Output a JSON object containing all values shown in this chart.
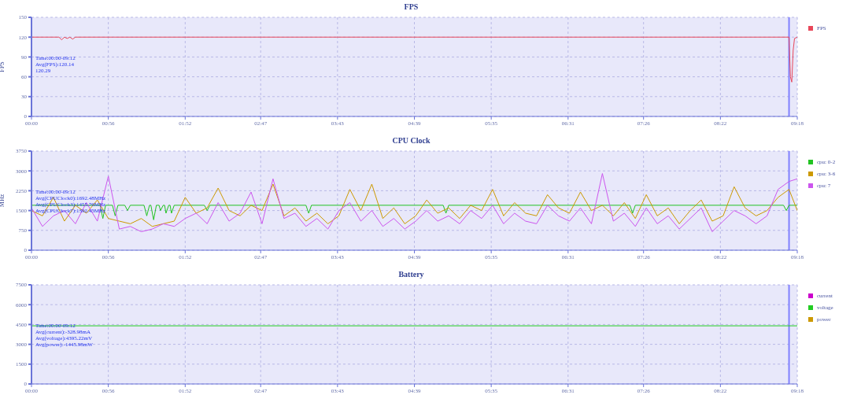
{
  "chart_data": [
    {
      "type": "line",
      "title": "FPS",
      "ylabel": "FPS",
      "xlim": [
        0,
        558
      ],
      "ylim": [
        0,
        150
      ],
      "yticks": [
        0,
        30,
        60,
        90,
        120,
        150
      ],
      "xticks": [
        {
          "value": 0,
          "label": "00:00"
        },
        {
          "value": 56,
          "label": "00:56"
        },
        {
          "value": 112,
          "label": "01:52"
        },
        {
          "value": 167,
          "label": "02:47"
        },
        {
          "value": 223,
          "label": "03:43"
        },
        {
          "value": 279,
          "label": "04:39"
        },
        {
          "value": 335,
          "label": "05:35"
        },
        {
          "value": 391,
          "label": "06:31"
        },
        {
          "value": 446,
          "label": "07:26"
        },
        {
          "value": 502,
          "label": "08:22"
        },
        {
          "value": 558,
          "label": "09:18"
        }
      ],
      "series": [
        {
          "name": "FPS",
          "color": "#e8475a",
          "x": [
            0,
            20,
            22,
            24,
            26,
            28,
            30,
            32,
            60,
            140,
            240,
            552,
            553,
            554,
            555,
            556,
            558
          ],
          "values": [
            120,
            120,
            116,
            120,
            118,
            120,
            117,
            120,
            120,
            120,
            120,
            120,
            60,
            52,
            100,
            118,
            120
          ]
        }
      ],
      "annotations": [
        "Time:00:00-09:12",
        "Avg(FPS):120.14",
        "120.29"
      ],
      "ref_lines": [
        {
          "axis": "x",
          "value": 552,
          "color": "#8080ff"
        }
      ],
      "grid": true,
      "legend": "right"
    },
    {
      "type": "line",
      "title": "CPU Clock",
      "ylabel": "MHz",
      "xlim": [
        0,
        558
      ],
      "ylim": [
        0,
        3750
      ],
      "yticks": [
        0,
        750,
        1500,
        2250,
        3000,
        3750
      ],
      "xticks": [
        {
          "value": 0,
          "label": "00:00"
        },
        {
          "value": 56,
          "label": "00:56"
        },
        {
          "value": 112,
          "label": "01:52"
        },
        {
          "value": 167,
          "label": "02:47"
        },
        {
          "value": 223,
          "label": "03:43"
        },
        {
          "value": 279,
          "label": "04:39"
        },
        {
          "value": 335,
          "label": "05:35"
        },
        {
          "value": 391,
          "label": "06:31"
        },
        {
          "value": 446,
          "label": "07:26"
        },
        {
          "value": 502,
          "label": "08:22"
        },
        {
          "value": 558,
          "label": "09:18"
        }
      ],
      "series": [
        {
          "name": "cpu: 0-2",
          "color": "#22c322",
          "x": [
            0,
            50,
            52,
            54,
            59,
            61,
            63,
            68,
            70,
            72,
            82,
            84,
            86,
            87,
            89,
            91,
            93,
            94,
            96,
            97,
            98,
            100,
            101,
            102,
            104,
            126,
            128,
            130,
            200,
            202,
            204,
            300,
            302,
            304,
            436,
            438,
            440,
            548,
            550,
            552,
            558
          ],
          "values": [
            1700,
            1700,
            1200,
            1700,
            1700,
            1300,
            1700,
            1700,
            1500,
            1700,
            1700,
            1300,
            1700,
            1700,
            1150,
            1700,
            1700,
            1500,
            1700,
            1700,
            1400,
            1700,
            1700,
            1400,
            1700,
            1700,
            1500,
            1700,
            1700,
            1400,
            1700,
            1700,
            1400,
            1700,
            1700,
            1400,
            1700,
            1700,
            1500,
            1700,
            1700
          ]
        },
        {
          "name": "cpu: 3-6",
          "color": "#cc9900",
          "x": [
            0,
            8,
            16,
            24,
            32,
            40,
            48,
            56,
            64,
            72,
            80,
            88,
            96,
            104,
            112,
            120,
            128,
            136,
            144,
            152,
            160,
            168,
            176,
            184,
            192,
            200,
            208,
            216,
            224,
            232,
            240,
            248,
            256,
            264,
            272,
            280,
            288,
            296,
            304,
            312,
            320,
            328,
            336,
            344,
            352,
            360,
            368,
            376,
            384,
            392,
            400,
            408,
            416,
            424,
            432,
            440,
            448,
            456,
            464,
            472,
            480,
            488,
            496,
            504,
            512,
            520,
            528,
            536,
            544,
            552,
            558
          ],
          "values": [
            1500,
            1300,
            2000,
            1100,
            1700,
            1400,
            1900,
            1200,
            1100,
            1000,
            1200,
            900,
            1000,
            1100,
            2000,
            1400,
            1600,
            2350,
            1500,
            1300,
            1700,
            1500,
            2500,
            1300,
            1600,
            1100,
            1400,
            1000,
            1300,
            2300,
            1500,
            2500,
            1200,
            1600,
            1000,
            1300,
            1900,
            1400,
            1600,
            1200,
            1700,
            1500,
            2300,
            1300,
            1800,
            1400,
            1300,
            2100,
            1600,
            1400,
            2200,
            1500,
            1700,
            1300,
            1800,
            1200,
            2100,
            1300,
            1600,
            1000,
            1500,
            1900,
            1100,
            1300,
            2400,
            1600,
            1300,
            1500,
            2000,
            2300,
            1500
          ]
        },
        {
          "name": "cpu: 7",
          "color": "#cc55ee",
          "x": [
            0,
            8,
            16,
            24,
            32,
            40,
            48,
            56,
            64,
            72,
            80,
            88,
            96,
            104,
            112,
            120,
            128,
            136,
            144,
            152,
            160,
            168,
            176,
            184,
            192,
            200,
            208,
            216,
            224,
            232,
            240,
            248,
            256,
            264,
            272,
            280,
            288,
            296,
            304,
            312,
            320,
            328,
            336,
            344,
            352,
            360,
            368,
            376,
            384,
            392,
            400,
            408,
            416,
            424,
            432,
            440,
            448,
            456,
            464,
            472,
            480,
            488,
            496,
            504,
            512,
            520,
            528,
            536,
            544,
            552,
            558
          ],
          "values": [
            1600,
            900,
            1300,
            1500,
            1000,
            1800,
            1100,
            2800,
            800,
            900,
            700,
            800,
            1000,
            900,
            1200,
            1400,
            1000,
            1800,
            1100,
            1400,
            2200,
            1000,
            2700,
            1200,
            1400,
            900,
            1200,
            800,
            1500,
            1800,
            1100,
            1500,
            900,
            1200,
            800,
            1100,
            1500,
            1100,
            1300,
            1000,
            1500,
            1200,
            1700,
            1000,
            1400,
            1100,
            1000,
            1700,
            1300,
            1100,
            1600,
            1000,
            2900,
            1100,
            1400,
            900,
            1600,
            1000,
            1300,
            800,
            1200,
            1600,
            700,
            1100,
            1500,
            1300,
            1000,
            1300,
            2300,
            2600,
            2700
          ]
        }
      ],
      "annotations": [
        "Time:00:00-09:12",
        "Avg(CPUClock0):1692.48MHz",
        "Avg(CPUClock3):1455.76MHz",
        "Avg(CPUClock7):1392.45MHz"
      ],
      "ref_lines": [
        {
          "axis": "x",
          "value": 552,
          "color": "#8080ff"
        }
      ],
      "grid": true,
      "legend": "right"
    },
    {
      "type": "line",
      "title": "Battery",
      "xlim": [
        0,
        558
      ],
      "ylim": [
        0,
        7500
      ],
      "yticks": [
        0,
        1500,
        3000,
        4500,
        6000,
        7500
      ],
      "xticks": [
        {
          "value": 0,
          "label": "00:00"
        },
        {
          "value": 56,
          "label": "00:56"
        },
        {
          "value": 112,
          "label": "01:52"
        },
        {
          "value": 167,
          "label": "02:47"
        },
        {
          "value": 223,
          "label": "03:43"
        },
        {
          "value": 279,
          "label": "04:39"
        },
        {
          "value": 335,
          "label": "05:35"
        },
        {
          "value": 391,
          "label": "06:31"
        },
        {
          "value": 446,
          "label": "07:26"
        },
        {
          "value": 502,
          "label": "08:22"
        },
        {
          "value": 558,
          "label": "09:18"
        }
      ],
      "series": [
        {
          "name": "current",
          "color": "#cc00cc"
        },
        {
          "name": "voltage",
          "color": "#22cc22",
          "x": [
            0,
            558
          ],
          "values": [
            4400,
            4400
          ]
        },
        {
          "name": "power",
          "color": "#cc9900"
        }
      ],
      "annotations": [
        "Time:00:00-09:12",
        "Avg(current):-328.98mA",
        "Avg(voltage):4395.22mV",
        "Avg(power):-1445.98mW"
      ],
      "ref_lines": [
        {
          "axis": "x",
          "value": 552,
          "color": "#8080ff"
        }
      ],
      "grid": true,
      "legend": "right"
    }
  ]
}
